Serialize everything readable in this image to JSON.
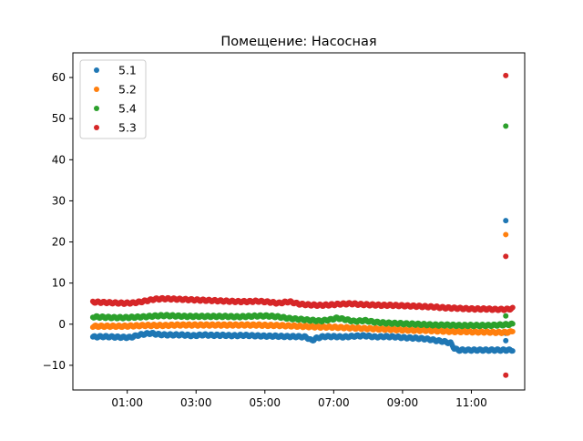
{
  "chart_data": {
    "type": "scatter",
    "title": "Помещение: Насосная",
    "xlabel": "",
    "ylabel": "",
    "x_unit": "hours",
    "xlim": [
      -0.58,
      12.55
    ],
    "ylim": [
      -16,
      66
    ],
    "x_ticks": [
      {
        "value": 1,
        "label": "01:00"
      },
      {
        "value": 3,
        "label": "03:00"
      },
      {
        "value": 5,
        "label": "05:00"
      },
      {
        "value": 7,
        "label": "07:00"
      },
      {
        "value": 9,
        "label": "09:00"
      },
      {
        "value": 11,
        "label": "11:00"
      }
    ],
    "y_ticks": [
      -10,
      0,
      10,
      20,
      30,
      40,
      50,
      60
    ],
    "grid": false,
    "legend_position": "top-left",
    "series": [
      {
        "name": "5.1",
        "color": "#1f77b4",
        "points": [
          [
            0,
            -3.1
          ],
          [
            0.3,
            -3.0
          ],
          [
            0.6,
            -3.1
          ],
          [
            0.9,
            -3.2
          ],
          [
            1.1,
            -3.2
          ],
          [
            1.3,
            -2.7
          ],
          [
            1.5,
            -2.4
          ],
          [
            1.7,
            -2.2
          ],
          [
            1.9,
            -2.5
          ],
          [
            2.1,
            -2.6
          ],
          [
            2.3,
            -2.6
          ],
          [
            2.6,
            -2.6
          ],
          [
            2.9,
            -2.8
          ],
          [
            3.2,
            -2.6
          ],
          [
            3.5,
            -2.7
          ],
          [
            3.8,
            -2.7
          ],
          [
            4.1,
            -2.8
          ],
          [
            4.4,
            -2.7
          ],
          [
            4.7,
            -2.8
          ],
          [
            5.0,
            -2.9
          ],
          [
            5.3,
            -2.9
          ],
          [
            5.6,
            -3.0
          ],
          [
            5.9,
            -3.0
          ],
          [
            6.2,
            -3.1
          ],
          [
            6.35,
            -4.0
          ],
          [
            6.5,
            -3.4
          ],
          [
            6.7,
            -3.0
          ],
          [
            7.0,
            -3.0
          ],
          [
            7.3,
            -3.1
          ],
          [
            7.6,
            -2.9
          ],
          [
            7.9,
            -2.8
          ],
          [
            8.2,
            -3.1
          ],
          [
            8.5,
            -3.0
          ],
          [
            8.8,
            -3.1
          ],
          [
            9.1,
            -3.3
          ],
          [
            9.4,
            -3.4
          ],
          [
            9.7,
            -3.6
          ],
          [
            10.0,
            -4.0
          ],
          [
            10.2,
            -4.2
          ],
          [
            10.4,
            -4.6
          ],
          [
            10.5,
            -5.8
          ],
          [
            10.6,
            -6.3
          ],
          [
            10.9,
            -6.3
          ],
          [
            11.2,
            -6.3
          ],
          [
            11.5,
            -6.3
          ],
          [
            11.8,
            -6.3
          ],
          [
            12.1,
            -6.3
          ],
          [
            12.2,
            -6.3
          ],
          [
            12.0,
            -4.0
          ],
          [
            12.0,
            -2.0
          ],
          [
            12.0,
            25.2
          ]
        ]
      },
      {
        "name": "5.2",
        "color": "#ff7f0e",
        "points": [
          [
            0,
            -0.5
          ],
          [
            0.3,
            -0.5
          ],
          [
            0.6,
            -0.5
          ],
          [
            0.9,
            -0.5
          ],
          [
            1.2,
            -0.4
          ],
          [
            1.5,
            -0.3
          ],
          [
            1.8,
            -0.3
          ],
          [
            2.1,
            -0.3
          ],
          [
            2.4,
            -0.2
          ],
          [
            2.7,
            -0.2
          ],
          [
            3.0,
            -0.2
          ],
          [
            3.3,
            -0.2
          ],
          [
            3.6,
            -0.2
          ],
          [
            3.9,
            -0.2
          ],
          [
            4.2,
            -0.2
          ],
          [
            4.5,
            -0.2
          ],
          [
            4.8,
            -0.2
          ],
          [
            5.1,
            -0.3
          ],
          [
            5.4,
            -0.3
          ],
          [
            5.7,
            -0.4
          ],
          [
            6.0,
            -0.5
          ],
          [
            6.3,
            -0.6
          ],
          [
            6.6,
            -0.7
          ],
          [
            6.9,
            -0.7
          ],
          [
            7.2,
            -0.8
          ],
          [
            7.5,
            -0.9
          ],
          [
            7.8,
            -1.0
          ],
          [
            8.1,
            -1.1
          ],
          [
            8.4,
            -1.2
          ],
          [
            8.7,
            -1.3
          ],
          [
            9.0,
            -1.4
          ],
          [
            9.3,
            -1.5
          ],
          [
            9.6,
            -1.5
          ],
          [
            9.9,
            -1.6
          ],
          [
            10.2,
            -1.7
          ],
          [
            10.5,
            -1.8
          ],
          [
            10.8,
            -1.8
          ],
          [
            11.1,
            -1.9
          ],
          [
            11.4,
            -1.9
          ],
          [
            11.7,
            -2.0
          ],
          [
            12.0,
            -2.0
          ],
          [
            12.2,
            -1.8
          ],
          [
            12.0,
            21.8
          ]
        ]
      },
      {
        "name": "5.4",
        "color": "#2ca02c",
        "points": [
          [
            0,
            1.8
          ],
          [
            0.3,
            1.7
          ],
          [
            0.6,
            1.6
          ],
          [
            0.9,
            1.6
          ],
          [
            1.2,
            1.7
          ],
          [
            1.5,
            1.8
          ],
          [
            1.8,
            2.0
          ],
          [
            2.1,
            2.1
          ],
          [
            2.4,
            2.0
          ],
          [
            2.7,
            1.9
          ],
          [
            3.0,
            1.9
          ],
          [
            3.3,
            1.9
          ],
          [
            3.6,
            1.9
          ],
          [
            3.9,
            1.9
          ],
          [
            4.2,
            1.8
          ],
          [
            4.5,
            1.9
          ],
          [
            4.8,
            2.0
          ],
          [
            5.1,
            2.0
          ],
          [
            5.4,
            1.8
          ],
          [
            5.7,
            1.4
          ],
          [
            6.0,
            1.2
          ],
          [
            6.3,
            1.0
          ],
          [
            6.6,
            0.8
          ],
          [
            6.9,
            1.1
          ],
          [
            7.1,
            1.5
          ],
          [
            7.3,
            1.2
          ],
          [
            7.6,
            0.7
          ],
          [
            7.9,
            0.9
          ],
          [
            8.2,
            0.5
          ],
          [
            8.5,
            0.3
          ],
          [
            8.8,
            0.2
          ],
          [
            9.1,
            0.1
          ],
          [
            9.4,
            0.0
          ],
          [
            9.7,
            -0.1
          ],
          [
            10.0,
            -0.2
          ],
          [
            10.3,
            -0.2
          ],
          [
            10.6,
            -0.3
          ],
          [
            10.9,
            -0.3
          ],
          [
            11.2,
            -0.3
          ],
          [
            11.5,
            -0.3
          ],
          [
            11.8,
            -0.2
          ],
          [
            12.0,
            -0.1
          ],
          [
            12.2,
            0.0
          ],
          [
            12.0,
            2.0
          ],
          [
            12.0,
            48.2
          ]
        ]
      },
      {
        "name": "5.3",
        "color": "#d62728",
        "points": [
          [
            0,
            5.4
          ],
          [
            0.3,
            5.3
          ],
          [
            0.6,
            5.2
          ],
          [
            0.9,
            5.1
          ],
          [
            1.2,
            5.2
          ],
          [
            1.5,
            5.6
          ],
          [
            1.8,
            6.1
          ],
          [
            2.1,
            6.2
          ],
          [
            2.4,
            6.1
          ],
          [
            2.7,
            6.0
          ],
          [
            3.0,
            5.9
          ],
          [
            3.3,
            5.8
          ],
          [
            3.6,
            5.7
          ],
          [
            3.9,
            5.6
          ],
          [
            4.2,
            5.5
          ],
          [
            4.5,
            5.5
          ],
          [
            4.8,
            5.6
          ],
          [
            5.1,
            5.4
          ],
          [
            5.4,
            5.1
          ],
          [
            5.7,
            5.5
          ],
          [
            6.0,
            4.9
          ],
          [
            6.3,
            4.7
          ],
          [
            6.6,
            4.6
          ],
          [
            6.9,
            4.7
          ],
          [
            7.2,
            4.9
          ],
          [
            7.5,
            5.0
          ],
          [
            7.8,
            4.8
          ],
          [
            8.1,
            4.7
          ],
          [
            8.4,
            4.6
          ],
          [
            8.7,
            4.6
          ],
          [
            9.0,
            4.5
          ],
          [
            9.3,
            4.4
          ],
          [
            9.6,
            4.3
          ],
          [
            9.9,
            4.2
          ],
          [
            10.2,
            4.0
          ],
          [
            10.5,
            3.9
          ],
          [
            10.8,
            3.8
          ],
          [
            11.1,
            3.7
          ],
          [
            11.4,
            3.7
          ],
          [
            11.7,
            3.6
          ],
          [
            12.0,
            3.6
          ],
          [
            12.2,
            3.8
          ],
          [
            12.0,
            16.5
          ],
          [
            12.0,
            60.4
          ],
          [
            12.0,
            -12.4
          ]
        ]
      }
    ]
  }
}
